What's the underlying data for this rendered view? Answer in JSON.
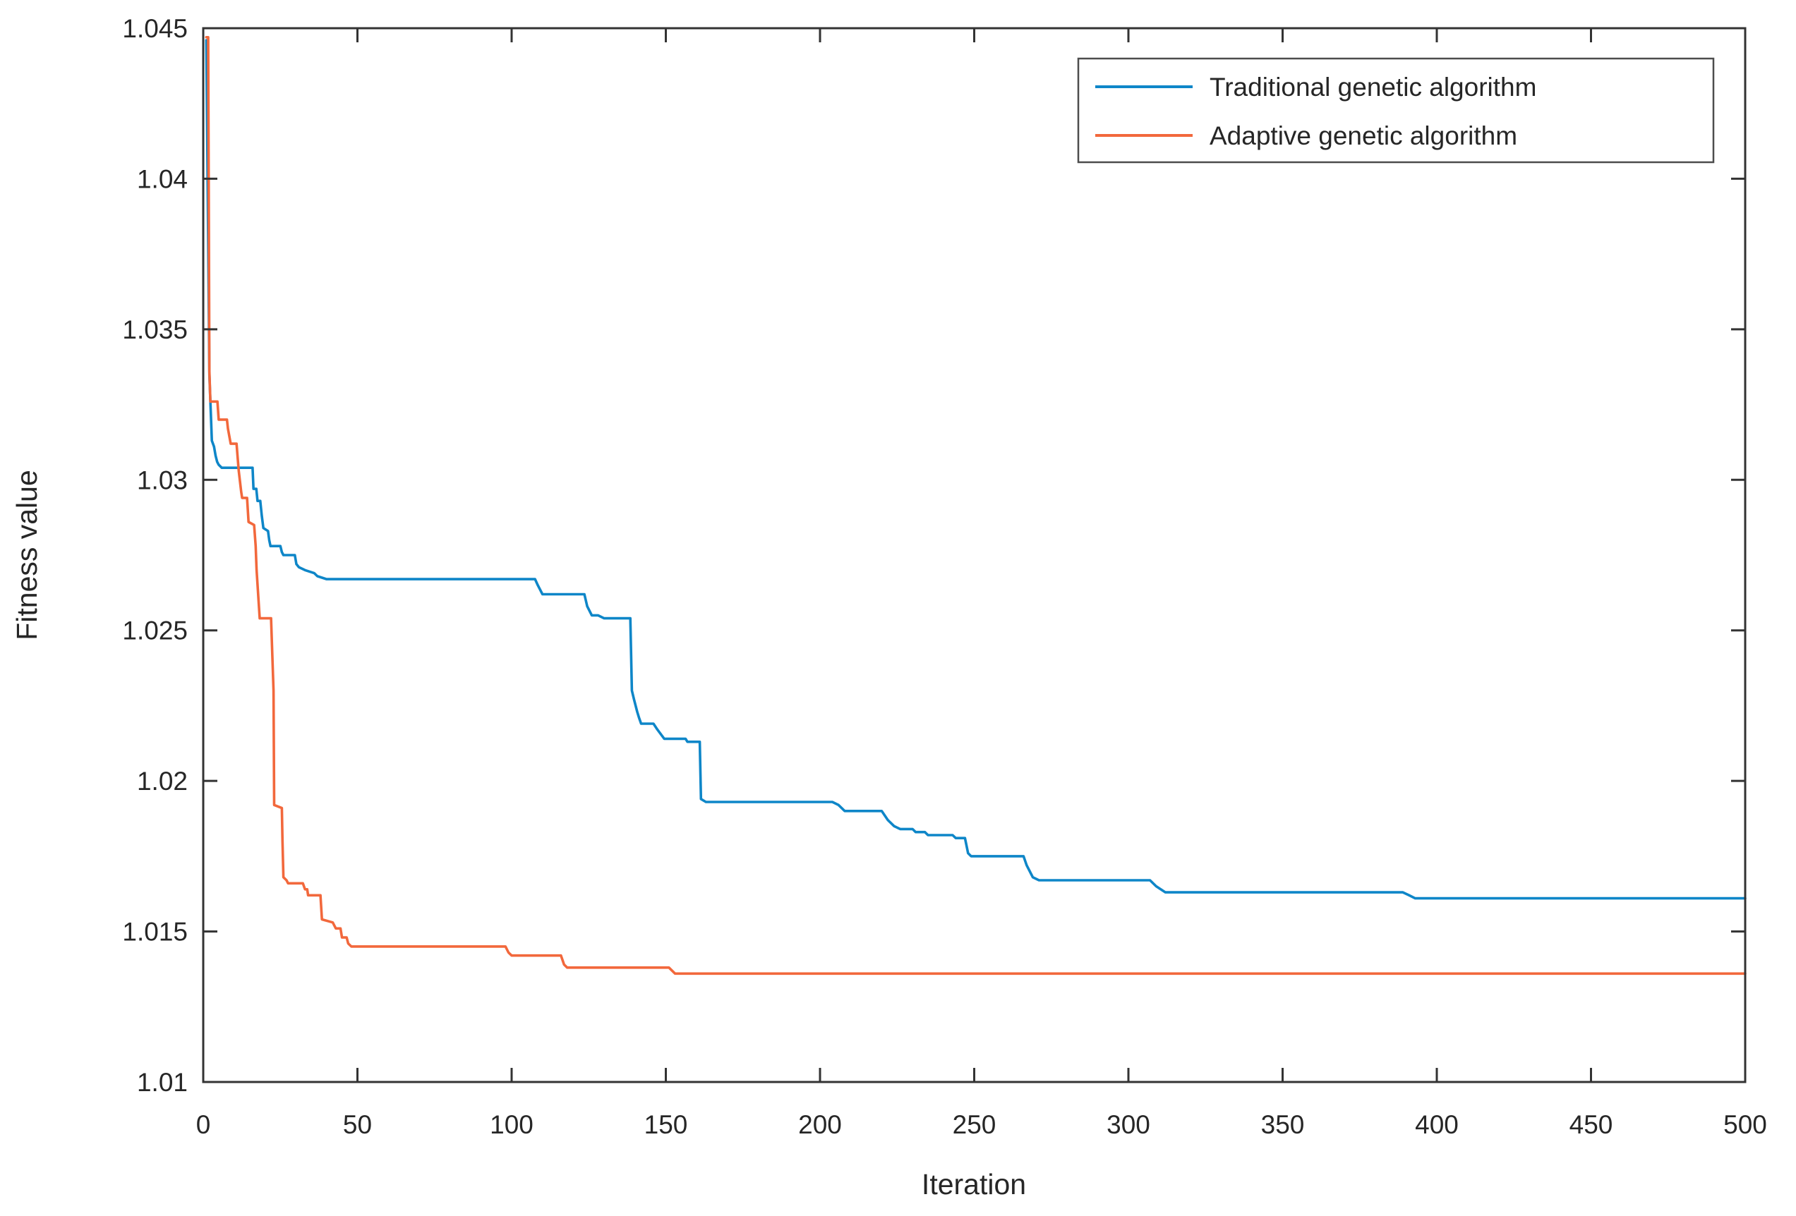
{
  "figure": {
    "background": "#ffffff",
    "axis_color": "#333333",
    "text_color": "#262626",
    "legend_border_color": "#4d4d4d"
  },
  "chart_data": {
    "type": "line",
    "title": "",
    "xlabel": "Iteration",
    "ylabel": "Fitness value",
    "xlim": [
      0,
      500
    ],
    "ylim": [
      1.01,
      1.045
    ],
    "grid": false,
    "box": true,
    "x_ticks": {
      "values": [
        0,
        50,
        100,
        150,
        200,
        250,
        300,
        350,
        400,
        450,
        500
      ],
      "labels": [
        "0",
        "50",
        "100",
        "150",
        "200",
        "250",
        "300",
        "350",
        "400",
        "450",
        "500"
      ]
    },
    "y_ticks": {
      "values": [
        1.01,
        1.015,
        1.02,
        1.025,
        1.03,
        1.035,
        1.04,
        1.045
      ],
      "labels": [
        "1.01",
        "1.015",
        "1.02",
        "1.025",
        "1.03",
        "1.035",
        "1.04",
        "1.045"
      ]
    },
    "legend": {
      "position": "top-right-inside",
      "border": true
    },
    "series": [
      {
        "name": "Traditional genetic algorithm",
        "color": "#0E86C8",
        "points": [
          [
            1,
            1.0446
          ],
          [
            2,
            1.0335
          ],
          [
            2.8,
            1.0313
          ],
          [
            3.5,
            1.0311
          ],
          [
            4,
            1.0308
          ],
          [
            4.5,
            1.0306
          ],
          [
            5,
            1.0305
          ],
          [
            6,
            1.0304
          ],
          [
            16,
            1.0304
          ],
          [
            16.3,
            1.0297
          ],
          [
            17.2,
            1.0297
          ],
          [
            17.6,
            1.0293
          ],
          [
            18.5,
            1.0293
          ],
          [
            19,
            1.0288
          ],
          [
            19.5,
            1.0284
          ],
          [
            21,
            1.0283
          ],
          [
            21.4,
            1.028
          ],
          [
            21.8,
            1.0278
          ],
          [
            25,
            1.0278
          ],
          [
            25.5,
            1.0276
          ],
          [
            26,
            1.0275
          ],
          [
            29.7,
            1.0275
          ],
          [
            30.2,
            1.0272
          ],
          [
            31,
            1.0271
          ],
          [
            33,
            1.027
          ],
          [
            36,
            1.0269
          ],
          [
            37,
            1.0268
          ],
          [
            40,
            1.0267
          ],
          [
            107.6,
            1.0267
          ],
          [
            108.5,
            1.0265
          ],
          [
            110,
            1.0262
          ],
          [
            123.6,
            1.0262
          ],
          [
            124.5,
            1.0258
          ],
          [
            126,
            1.0255
          ],
          [
            128,
            1.0255
          ],
          [
            130,
            1.0254
          ],
          [
            138.5,
            1.0254
          ],
          [
            139,
            1.023
          ],
          [
            139.7,
            1.0227
          ],
          [
            140.7,
            1.0223
          ],
          [
            141.3,
            1.0221
          ],
          [
            142,
            1.0219
          ],
          [
            146,
            1.0219
          ],
          [
            147.3,
            1.0217
          ],
          [
            149.5,
            1.0214
          ],
          [
            156.4,
            1.0214
          ],
          [
            157,
            1.0213
          ],
          [
            161,
            1.0213
          ],
          [
            161.4,
            1.0194
          ],
          [
            163,
            1.0193
          ],
          [
            204,
            1.0193
          ],
          [
            206,
            1.0192
          ],
          [
            208,
            1.019
          ],
          [
            220,
            1.019
          ],
          [
            222,
            1.0187
          ],
          [
            224,
            1.0185
          ],
          [
            226,
            1.0184
          ],
          [
            230,
            1.0184
          ],
          [
            231,
            1.0183
          ],
          [
            234,
            1.0183
          ],
          [
            235,
            1.0182
          ],
          [
            243,
            1.0182
          ],
          [
            244,
            1.0181
          ],
          [
            247,
            1.0181
          ],
          [
            248,
            1.0176
          ],
          [
            249,
            1.0175
          ],
          [
            266,
            1.0175
          ],
          [
            267,
            1.0172
          ],
          [
            269,
            1.0168
          ],
          [
            271,
            1.0167
          ],
          [
            307,
            1.0167
          ],
          [
            309,
            1.0165
          ],
          [
            312,
            1.0163
          ],
          [
            389,
            1.0163
          ],
          [
            391,
            1.0162
          ],
          [
            393,
            1.0161
          ],
          [
            500,
            1.0161
          ]
        ]
      },
      {
        "name": "Adaptive genetic algorithm",
        "color": "#F2683C",
        "points": [
          [
            1,
            1.0447
          ],
          [
            1.6,
            1.0447
          ],
          [
            2,
            1.0336
          ],
          [
            2.3,
            1.0326
          ],
          [
            4.6,
            1.0326
          ],
          [
            5,
            1.032
          ],
          [
            7.7,
            1.032
          ],
          [
            8,
            1.0317
          ],
          [
            8.9,
            1.0312
          ],
          [
            10.8,
            1.0312
          ],
          [
            11.2,
            1.0307
          ],
          [
            11.5,
            1.0303
          ],
          [
            12.3,
            1.0296
          ],
          [
            12.6,
            1.0294
          ],
          [
            14.2,
            1.0294
          ],
          [
            14.7,
            1.0286
          ],
          [
            16.5,
            1.0285
          ],
          [
            17,
            1.0278
          ],
          [
            17.3,
            1.027
          ],
          [
            18.3,
            1.0254
          ],
          [
            22,
            1.0254
          ],
          [
            22.8,
            1.023
          ],
          [
            23,
            1.0192
          ],
          [
            25.5,
            1.0191
          ],
          [
            25.7,
            1.018
          ],
          [
            26,
            1.0168
          ],
          [
            27,
            1.0167
          ],
          [
            27.5,
            1.0166
          ],
          [
            32.3,
            1.0166
          ],
          [
            33,
            1.0164
          ],
          [
            33.7,
            1.0164
          ],
          [
            34,
            1.0162
          ],
          [
            38,
            1.0162
          ],
          [
            38.5,
            1.0154
          ],
          [
            42,
            1.0153
          ],
          [
            43,
            1.0151
          ],
          [
            44.5,
            1.0151
          ],
          [
            45,
            1.0148
          ],
          [
            46.5,
            1.0148
          ],
          [
            47,
            1.0146
          ],
          [
            48,
            1.0145
          ],
          [
            98,
            1.0145
          ],
          [
            99,
            1.0143
          ],
          [
            100,
            1.0142
          ],
          [
            116,
            1.0142
          ],
          [
            117,
            1.0139
          ],
          [
            118,
            1.0138
          ],
          [
            151,
            1.0138
          ],
          [
            153,
            1.0136
          ],
          [
            500,
            1.0136
          ]
        ]
      }
    ]
  }
}
